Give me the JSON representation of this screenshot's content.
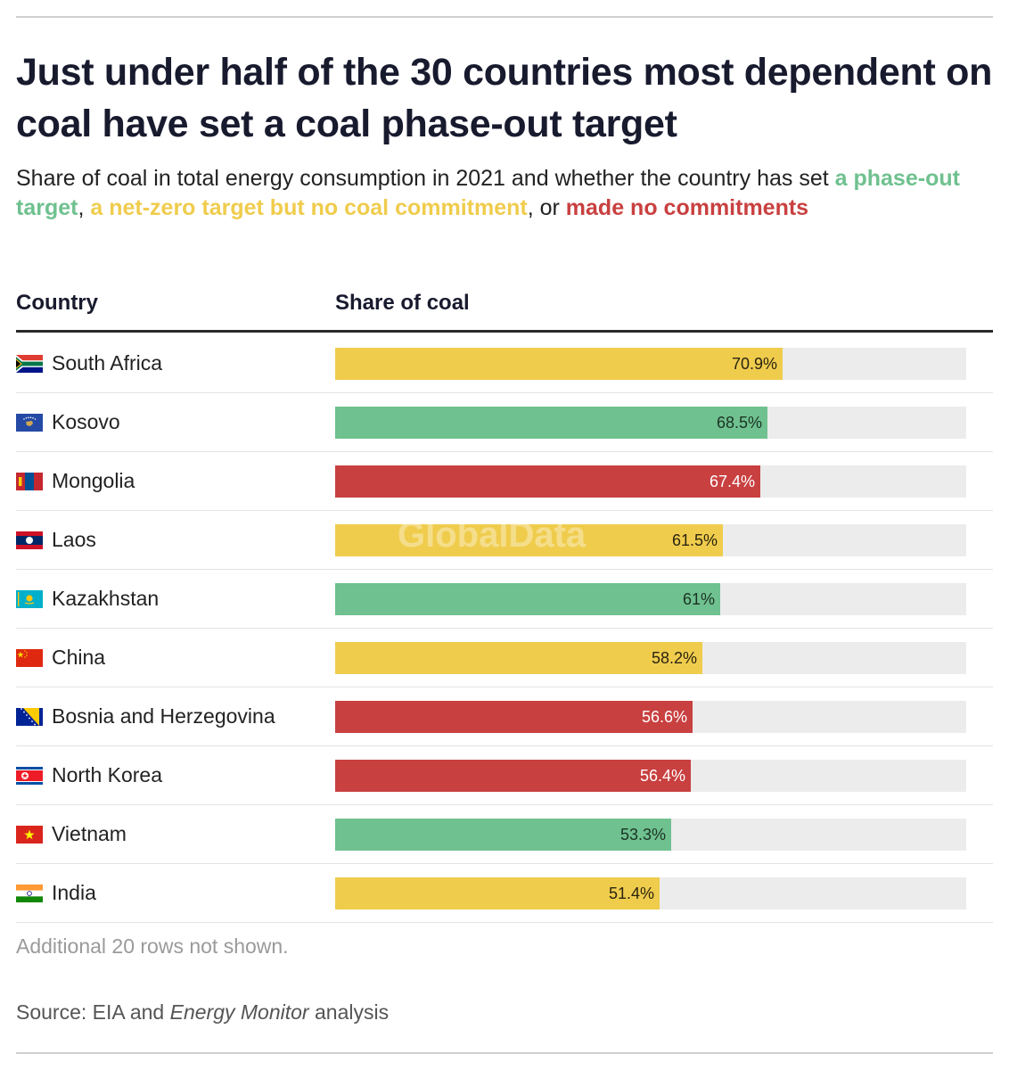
{
  "title": "Just under half of the 30 countries most dependent on coal have set a coal phase-out target",
  "subtitle": {
    "prefix": "Share of coal in total energy consumption in 2021 and whether the country has set ",
    "key1": "a phase-out target",
    "sep1": ", ",
    "key2": "a net-zero target but no coal commitment",
    "sep2": ", or ",
    "key3": "made no commitments"
  },
  "colors": {
    "phase_out": "#6fc18f",
    "net_zero": "#f0cc4d",
    "none": "#c94040",
    "track": "#ececec"
  },
  "columns": {
    "country": "Country",
    "share": "Share of coal"
  },
  "watermark": "GlobalData",
  "chart_data": {
    "type": "bar",
    "orientation": "horizontal",
    "title": "Just under half of the 30 countries most dependent on coal have set a coal phase-out target",
    "xlabel": "Share of coal",
    "ylabel": "Country",
    "xlim": [
      0,
      100
    ],
    "categories": [
      "South Africa",
      "Kosovo",
      "Mongolia",
      "Laos",
      "Kazakhstan",
      "China",
      "Bosnia and Herzegovina",
      "North Korea",
      "Vietnam",
      "India"
    ],
    "values": [
      70.9,
      68.5,
      67.4,
      61.5,
      61,
      58.2,
      56.6,
      56.4,
      53.3,
      51.4
    ],
    "labels": [
      "70.9%",
      "68.5%",
      "67.4%",
      "61.5%",
      "61%",
      "58.2%",
      "56.6%",
      "56.4%",
      "53.3%",
      "51.4%"
    ],
    "status": [
      "net_zero",
      "phase_out",
      "none",
      "net_zero",
      "phase_out",
      "net_zero",
      "none",
      "none",
      "phase_out",
      "net_zero"
    ],
    "flags": [
      "flag-south-africa",
      "flag-kosovo",
      "flag-mongolia",
      "flag-laos",
      "flag-kazakhstan",
      "flag-china",
      "flag-bosnia-and-herzegovina",
      "flag-north-korea",
      "flag-vietnam",
      "flag-india"
    ]
  },
  "note": "Additional 20 rows not shown.",
  "source": {
    "prefix": "Source: EIA and ",
    "publication": "Energy Monitor",
    "suffix": " analysis"
  }
}
